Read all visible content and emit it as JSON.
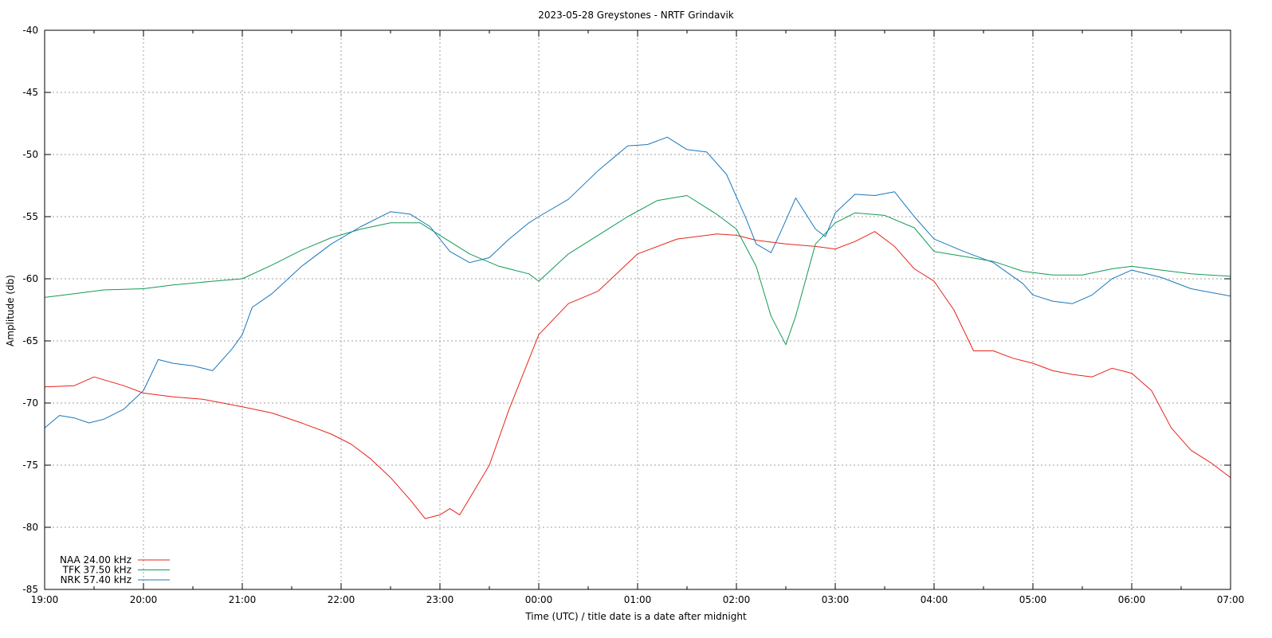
{
  "chart_data": {
    "type": "line",
    "title": "2023-05-28 Greystones - NRTF Grindavik",
    "xlabel": "Time (UTC) / title date is a date after midnight",
    "ylabel": "Amplitude (db)",
    "xlim": [
      19,
      31
    ],
    "ylim": [
      -85,
      -40
    ],
    "x_ticks": [
      {
        "value": 19,
        "label": "19:00"
      },
      {
        "value": 20,
        "label": "20:00"
      },
      {
        "value": 21,
        "label": "21:00"
      },
      {
        "value": 22,
        "label": "22:00"
      },
      {
        "value": 23,
        "label": "23:00"
      },
      {
        "value": 24,
        "label": "00:00"
      },
      {
        "value": 25,
        "label": "01:00"
      },
      {
        "value": 26,
        "label": "02:00"
      },
      {
        "value": 27,
        "label": "03:00"
      },
      {
        "value": 28,
        "label": "04:00"
      },
      {
        "value": 29,
        "label": "05:00"
      },
      {
        "value": 30,
        "label": "06:00"
      },
      {
        "value": 31,
        "label": "07:00"
      }
    ],
    "y_ticks": [
      {
        "value": -40,
        "label": "-40"
      },
      {
        "value": -45,
        "label": "-45"
      },
      {
        "value": -50,
        "label": "-50"
      },
      {
        "value": -55,
        "label": "-55"
      },
      {
        "value": -60,
        "label": "-60"
      },
      {
        "value": -65,
        "label": "-65"
      },
      {
        "value": -70,
        "label": "-70"
      },
      {
        "value": -75,
        "label": "-75"
      },
      {
        "value": -80,
        "label": "-80"
      },
      {
        "value": -85,
        "label": "-85"
      }
    ],
    "grid": true,
    "legend_position": "bottom-left",
    "series": [
      {
        "name": "NAA 24.00 kHz",
        "color": "#e8231a",
        "x": [
          19.0,
          19.3,
          19.5,
          19.8,
          20.0,
          20.3,
          20.6,
          21.0,
          21.3,
          21.6,
          21.9,
          22.1,
          22.3,
          22.5,
          22.7,
          22.85,
          23.0,
          23.1,
          23.2,
          23.35,
          23.5,
          23.7,
          23.9,
          24.0,
          24.3,
          24.6,
          25.0,
          25.4,
          25.8,
          26.0,
          26.2,
          26.5,
          26.8,
          27.0,
          27.2,
          27.4,
          27.6,
          27.8,
          28.0,
          28.2,
          28.4,
          28.6,
          28.8,
          29.0,
          29.2,
          29.4,
          29.6,
          29.8,
          30.0,
          30.2,
          30.4,
          30.6,
          30.8,
          31.0
        ],
        "y": [
          -68.7,
          -68.6,
          -67.9,
          -68.6,
          -69.2,
          -69.5,
          -69.7,
          -70.3,
          -70.8,
          -71.6,
          -72.5,
          -73.3,
          -74.5,
          -76.0,
          -77.8,
          -79.3,
          -79.0,
          -78.5,
          -79.0,
          -77.0,
          -75.0,
          -70.5,
          -66.5,
          -64.5,
          -62.0,
          -61.0,
          -58.0,
          -56.8,
          -56.4,
          -56.5,
          -56.9,
          -57.2,
          -57.4,
          -57.6,
          -57.0,
          -56.2,
          -57.4,
          -59.2,
          -60.2,
          -62.5,
          -65.8,
          -65.8,
          -66.4,
          -66.8,
          -67.4,
          -67.7,
          -67.9,
          -67.2,
          -67.6,
          -69.0,
          -72.0,
          -73.8,
          -74.8,
          -76.0
        ]
      },
      {
        "name": "TFK 37.50 kHz",
        "color": "#139a55",
        "x": [
          19.0,
          19.3,
          19.6,
          20.0,
          20.3,
          20.7,
          21.0,
          21.3,
          21.6,
          21.9,
          22.2,
          22.5,
          22.8,
          23.0,
          23.3,
          23.6,
          23.9,
          24.0,
          24.3,
          24.6,
          24.9,
          25.2,
          25.5,
          25.8,
          26.0,
          26.2,
          26.35,
          26.5,
          26.6,
          26.8,
          27.0,
          27.2,
          27.5,
          27.8,
          28.0,
          28.3,
          28.6,
          28.9,
          29.2,
          29.5,
          29.8,
          30.0,
          30.3,
          30.6,
          31.0
        ],
        "y": [
          -61.5,
          -61.2,
          -60.9,
          -60.8,
          -60.5,
          -60.2,
          -60.0,
          -58.9,
          -57.7,
          -56.7,
          -56.0,
          -55.5,
          -55.5,
          -56.5,
          -58.0,
          -59.0,
          -59.6,
          -60.2,
          -58.0,
          -56.5,
          -55.0,
          -53.7,
          -53.3,
          -54.8,
          -56.0,
          -59.0,
          -63.0,
          -65.3,
          -63.0,
          -57.2,
          -55.5,
          -54.7,
          -54.9,
          -55.9,
          -57.8,
          -58.2,
          -58.6,
          -59.4,
          -59.7,
          -59.7,
          -59.2,
          -59.0,
          -59.3,
          -59.6,
          -59.8
        ]
      },
      {
        "name": "NRK 57.40 kHz",
        "color": "#1a77bc",
        "x": [
          19.0,
          19.15,
          19.3,
          19.45,
          19.6,
          19.8,
          20.0,
          20.15,
          20.3,
          20.5,
          20.7,
          20.9,
          21.0,
          21.1,
          21.3,
          21.6,
          21.9,
          22.2,
          22.5,
          22.7,
          22.9,
          23.1,
          23.3,
          23.5,
          23.7,
          23.9,
          24.0,
          24.3,
          24.6,
          24.9,
          25.1,
          25.3,
          25.5,
          25.7,
          25.9,
          26.1,
          26.2,
          26.35,
          26.45,
          26.6,
          26.8,
          26.9,
          27.0,
          27.2,
          27.4,
          27.6,
          27.8,
          28.0,
          28.3,
          28.6,
          28.9,
          29.0,
          29.2,
          29.4,
          29.6,
          29.8,
          30.0,
          30.3,
          30.6,
          31.0
        ],
        "y": [
          -72.0,
          -71.0,
          -71.2,
          -71.6,
          -71.3,
          -70.5,
          -69.0,
          -66.5,
          -66.8,
          -67.0,
          -67.4,
          -65.6,
          -64.5,
          -62.3,
          -61.2,
          -59.0,
          -57.2,
          -55.8,
          -54.6,
          -54.8,
          -55.8,
          -57.8,
          -58.7,
          -58.3,
          -56.8,
          -55.5,
          -55.0,
          -53.6,
          -51.3,
          -49.3,
          -49.2,
          -48.6,
          -49.6,
          -49.8,
          -51.6,
          -55.2,
          -57.2,
          -57.9,
          -56.2,
          -53.5,
          -56.0,
          -56.6,
          -54.7,
          -53.2,
          -53.3,
          -53.0,
          -55.0,
          -56.8,
          -57.8,
          -58.7,
          -60.4,
          -61.3,
          -61.8,
          -62.0,
          -61.3,
          -60.0,
          -59.3,
          -59.9,
          -60.8,
          -61.4
        ]
      }
    ]
  }
}
